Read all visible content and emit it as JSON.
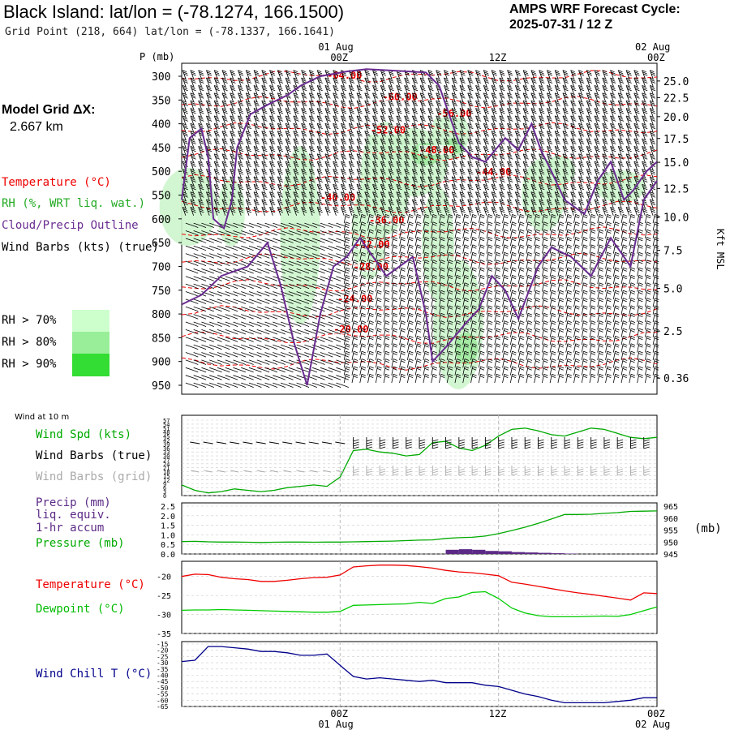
{
  "header": {
    "title": "Black Island:  lat/lon = (-78.1274, 166.1500)",
    "subtitle": "Grid Point (218, 664) lat/lon = (-78.1337, 166.1641)",
    "cycle_label": "AMPS WRF Forecast Cycle:",
    "cycle_value": "2025-07-31 / 12  Z"
  },
  "model_grid": {
    "label": "Model Grid ΔX:",
    "value": "2.667 km"
  },
  "legend": {
    "temperature": "Temperature (°C)",
    "rh": "RH (%, WRT liq. wat.)",
    "cloud": "Cloud/Precip Outline",
    "wind": "Wind Barbs (kts) (true)",
    "rh_levels": [
      {
        "label": "RH > 70%",
        "color": "#ccffcc"
      },
      {
        "label": "RH > 80%",
        "color": "#99ee99"
      },
      {
        "label": "RH > 90%",
        "color": "#33dd33"
      }
    ]
  },
  "colors": {
    "temperature": "#ee0000",
    "cloud": "#6a2c91",
    "wind_speed": "#00aa00",
    "wind_grid": "#aaaaaa",
    "precip": "#5b2a86",
    "pressure": "#00aa00",
    "dewpoint": "#00cc00",
    "wind_chill": "#00008b"
  },
  "chart_data": [
    {
      "type": "line",
      "name": "cross-section",
      "y_label": "P (mb)",
      "y_right_label": "Kft MSL",
      "pressure_ticks": [
        "300",
        "350",
        "400",
        "450",
        "500",
        "550",
        "600",
        "650",
        "700",
        "750",
        "800",
        "850",
        "900",
        "950"
      ],
      "height_ticks": [
        {
          "label": "25.0",
          "p": 310
        },
        {
          "label": "22.5",
          "p": 345
        },
        {
          "label": "20.0",
          "p": 385
        },
        {
          "label": "17.5",
          "p": 431
        },
        {
          "label": "15.0",
          "p": 481
        },
        {
          "label": "12.5",
          "p": 536
        },
        {
          "label": "10.0",
          "p": 596
        },
        {
          "label": "7.5",
          "p": 666
        },
        {
          "label": "5.0",
          "p": 746
        },
        {
          "label": "2.5",
          "p": 836
        },
        {
          "label": "0.36",
          "p": 935
        }
      ],
      "top_date_labels": [
        {
          "label": "01 Aug",
          "hour": 12
        },
        {
          "label": "02 Aug",
          "hour": 36
        }
      ],
      "time_ticks": [
        {
          "label": "00Z",
          "hour": 12
        },
        {
          "label": "12Z",
          "hour": 24
        },
        {
          "label": "00Z",
          "hour": 36
        }
      ],
      "x_range": [
        0,
        36
      ],
      "p_range": [
        285,
        960
      ],
      "isotherm_labels": [
        {
          "label": "-64.00",
          "hour": 11,
          "p": 305
        },
        {
          "label": "-60.00",
          "hour": 15.2,
          "p": 350
        },
        {
          "label": "-56.00",
          "hour": 19.3,
          "p": 385
        },
        {
          "label": "-52.00",
          "hour": 14.3,
          "p": 420
        },
        {
          "label": "-48.00",
          "hour": 18,
          "p": 462
        },
        {
          "label": "-44.00",
          "hour": 22.3,
          "p": 508
        },
        {
          "label": "-40.00",
          "hour": 10.5,
          "p": 562
        },
        {
          "label": "-36.00",
          "hour": 14.2,
          "p": 610
        },
        {
          "label": "-32.00",
          "hour": 13.1,
          "p": 661
        },
        {
          "label": "-28.00",
          "hour": 13,
          "p": 708
        },
        {
          "label": "-24.00",
          "hour": 11.8,
          "p": 775
        },
        {
          "label": "-20.00",
          "hour": 11.5,
          "p": 839
        }
      ],
      "isotherm_levels": [
        -64,
        -60,
        -56,
        -52,
        -48,
        -44,
        -40,
        -36,
        -32,
        -28,
        -24,
        -20
      ]
    },
    {
      "type": "line",
      "name": "surface wind",
      "title": "Wind at 10 m",
      "y_label": "Wind Spd (kts)",
      "barb_labels": [
        "Wind Barbs (true)",
        "Wind Barbs (grid)"
      ],
      "y_ticks": [
        "57",
        "54",
        "51",
        "48",
        "45",
        "42",
        "39",
        "36",
        "33",
        "30",
        "27",
        "24",
        "21",
        "18",
        "15",
        "12",
        "9",
        "6",
        "3",
        "0"
      ],
      "y_range": [
        0,
        57
      ],
      "x": [
        0,
        1,
        2,
        3,
        4,
        5,
        6,
        7,
        8,
        9,
        10,
        11,
        12,
        13,
        14,
        15,
        16,
        17,
        18,
        19,
        20,
        21,
        22,
        23,
        24,
        25,
        26,
        27,
        28,
        29,
        30,
        31,
        32,
        33,
        34,
        35,
        36
      ],
      "speed": [
        8,
        4,
        2,
        3,
        5,
        4,
        3,
        4,
        6,
        7,
        8,
        7,
        14,
        34,
        35,
        33,
        32,
        30,
        31,
        40,
        41,
        36,
        34,
        38,
        45,
        50,
        51,
        49,
        46,
        45,
        48,
        51,
        50,
        47,
        44,
        43,
        44
      ]
    },
    {
      "type": "area",
      "name": "precip and pressure",
      "y_label": "Precip (mm)",
      "y_label_lines": [
        "liq. equiv.",
        "1-hr accum"
      ],
      "y2_label": "Pressure (mb)",
      "y2_unit": "(mb)",
      "y_ticks": [
        "2.5",
        "2.0",
        "1.5",
        "1.0",
        "0.5",
        "0.0"
      ],
      "y_range": [
        0,
        2.5
      ],
      "y2_ticks": [
        "965",
        "960",
        "955",
        "950",
        "945"
      ],
      "y2_range": [
        945,
        965
      ],
      "x": [
        0,
        1,
        2,
        3,
        4,
        5,
        6,
        7,
        8,
        9,
        10,
        11,
        12,
        13,
        14,
        15,
        16,
        17,
        18,
        19,
        20,
        21,
        22,
        23,
        24,
        25,
        26,
        27,
        28,
        29,
        30,
        31,
        32,
        33,
        34,
        35,
        36
      ],
      "precip": [
        0,
        0,
        0,
        0,
        0,
        0,
        0,
        0,
        0,
        0,
        0,
        0,
        0,
        0,
        0,
        0,
        0,
        0,
        0,
        0,
        0.22,
        0.25,
        0.22,
        0.16,
        0.14,
        0.1,
        0.08,
        0.06,
        0.04,
        0.02,
        0,
        0,
        0,
        0,
        0,
        0,
        0
      ],
      "pressure": [
        950.2,
        950.3,
        950.1,
        950.0,
        950.0,
        949.9,
        949.8,
        949.9,
        950.0,
        950.0,
        949.9,
        950.0,
        950.0,
        950.1,
        950.2,
        950.3,
        950.4,
        950.6,
        950.8,
        950.9,
        951.5,
        951.8,
        952.0,
        952.5,
        953.5,
        954.8,
        956.2,
        957.8,
        959.6,
        961.5,
        961.5,
        961.6,
        962.0,
        962.3,
        962.8,
        962.9,
        963.0
      ]
    },
    {
      "type": "line",
      "name": "temperature and dewpoint",
      "y_label": "Temperature (°C)",
      "y2_label": "Dewpoint (°C)",
      "y_ticks": [
        "-20",
        "-25",
        "-30",
        "-35"
      ],
      "y_range": [
        -35,
        -16
      ],
      "x": [
        0,
        1,
        2,
        3,
        4,
        5,
        6,
        7,
        8,
        9,
        10,
        11,
        12,
        13,
        14,
        15,
        16,
        17,
        18,
        19,
        20,
        21,
        22,
        23,
        24,
        25,
        26,
        27,
        28,
        29,
        30,
        31,
        32,
        33,
        34,
        35,
        36
      ],
      "temperature": [
        -20.0,
        -19.4,
        -19.5,
        -20.2,
        -20.6,
        -20.8,
        -21.3,
        -21.3,
        -21.0,
        -20.6,
        -20.3,
        -20.2,
        -19.6,
        -17.5,
        -17.2,
        -17.0,
        -17.0,
        -17.1,
        -17.4,
        -17.8,
        -18.4,
        -18.8,
        -19.0,
        -19.4,
        -19.8,
        -21.5,
        -22.0,
        -22.6,
        -23.2,
        -23.8,
        -24.3,
        -24.7,
        -25.2,
        -25.7,
        -26.2,
        -24.3,
        -24.5
      ],
      "dewpoint": [
        -28.9,
        -28.8,
        -28.8,
        -28.7,
        -28.8,
        -28.9,
        -29.0,
        -29.1,
        -29.2,
        -29.3,
        -29.4,
        -29.4,
        -29.2,
        -27.6,
        -27.5,
        -27.4,
        -27.3,
        -27.2,
        -26.8,
        -27.1,
        -25.8,
        -25.4,
        -24.2,
        -24.0,
        -25.8,
        -28.3,
        -29.6,
        -30.3,
        -30.6,
        -30.6,
        -30.6,
        -30.5,
        -30.4,
        -30.5,
        -30.0,
        -29.0,
        -28.0
      ]
    },
    {
      "type": "line",
      "name": "wind chill",
      "y_label": "Wind Chill T (°C)",
      "y_ticks": [
        "-15",
        "-20",
        "-25",
        "-30",
        "-35",
        "-40",
        "-45",
        "-50",
        "-55",
        "-60",
        "-65"
      ],
      "y_range": [
        -65,
        -15
      ],
      "x": [
        0,
        1,
        2,
        3,
        4,
        5,
        6,
        7,
        8,
        9,
        10,
        11,
        12,
        13,
        14,
        15,
        16,
        17,
        18,
        19,
        20,
        21,
        22,
        23,
        24,
        25,
        26,
        27,
        28,
        29,
        30,
        31,
        32,
        33,
        34,
        35,
        36
      ],
      "wind_chill": [
        -29,
        -28,
        -17,
        -17,
        -18,
        -19,
        -21,
        -21,
        -22,
        -24,
        -24,
        -23,
        -32,
        -41,
        -43,
        -42,
        -43,
        -44,
        -45,
        -44,
        -46,
        -46,
        -46,
        -48,
        -49,
        -52,
        -55,
        -57,
        -60,
        -62,
        -62,
        -62,
        -62,
        -61,
        -60,
        -58,
        -58
      ]
    }
  ]
}
